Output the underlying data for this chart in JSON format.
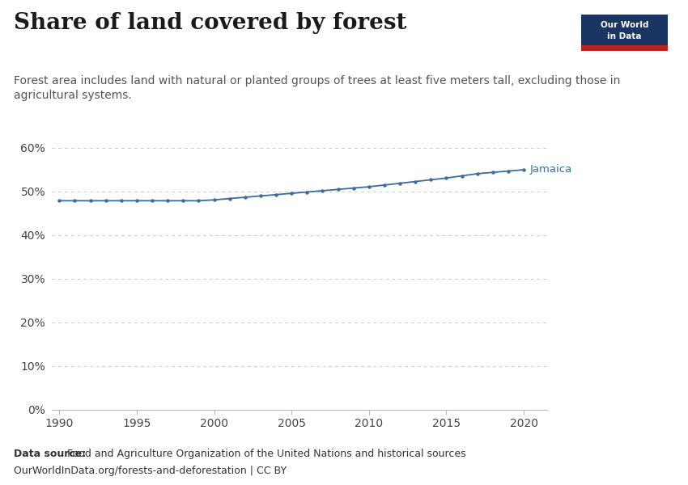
{
  "title": "Share of land covered by forest",
  "subtitle": "Forest area includes land with natural or planted groups of trees at least five meters tall, excluding those in\nagricultural systems.",
  "datasource_bold": "Data source:",
  "datasource_rest": " Food and Agriculture Organization of the United Nations and historical sources",
  "datasource_line2": "OurWorldInData.org/forests-and-deforestation | CC BY",
  "country_label": "Jamaica",
  "line_color": "#3d6b9e",
  "marker_color": "#3d6b9e",
  "years": [
    1990,
    1991,
    1992,
    1993,
    1994,
    1995,
    1996,
    1997,
    1998,
    1999,
    2000,
    2001,
    2002,
    2003,
    2004,
    2005,
    2006,
    2007,
    2008,
    2009,
    2010,
    2011,
    2012,
    2013,
    2014,
    2015,
    2016,
    2017,
    2018,
    2019,
    2020
  ],
  "values": [
    47.9,
    47.9,
    47.9,
    47.9,
    47.9,
    47.9,
    47.9,
    47.9,
    47.9,
    47.9,
    48.1,
    48.4,
    48.7,
    49.0,
    49.3,
    49.6,
    49.9,
    50.2,
    50.5,
    50.8,
    51.1,
    51.5,
    51.9,
    52.3,
    52.7,
    53.1,
    53.6,
    54.1,
    54.4,
    54.7,
    55.0
  ],
  "xlim": [
    1989.5,
    2021.5
  ],
  "ylim": [
    0,
    65
  ],
  "yticks": [
    0,
    10,
    20,
    30,
    40,
    50,
    60
  ],
  "xticks": [
    1990,
    1995,
    2000,
    2005,
    2010,
    2015,
    2020
  ],
  "background_color": "#ffffff",
  "grid_color": "#cccccc",
  "owid_box_color": "#1a3561",
  "owid_red_color": "#b7241f",
  "title_fontsize": 20,
  "subtitle_fontsize": 10,
  "tick_fontsize": 10,
  "annotation_fontsize": 9.5,
  "footer_fontsize": 9
}
